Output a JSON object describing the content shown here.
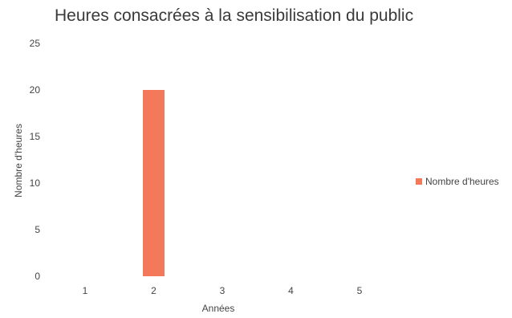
{
  "chart_data": {
    "type": "bar",
    "title": "Heures consacrées à la sensibilisation du public",
    "xlabel": "Années",
    "ylabel": "Nombre d'heures",
    "categories": [
      "1",
      "2",
      "3",
      "4",
      "5"
    ],
    "series": [
      {
        "name": "Nombre d'heures",
        "values": [
          0,
          20,
          0,
          0,
          0
        ],
        "color": "#f4795b"
      }
    ],
    "ylim": [
      0,
      25
    ],
    "yticks": [
      "0",
      "5",
      "10",
      "15",
      "20",
      "25"
    ],
    "grid": false,
    "legend_position": "right"
  }
}
